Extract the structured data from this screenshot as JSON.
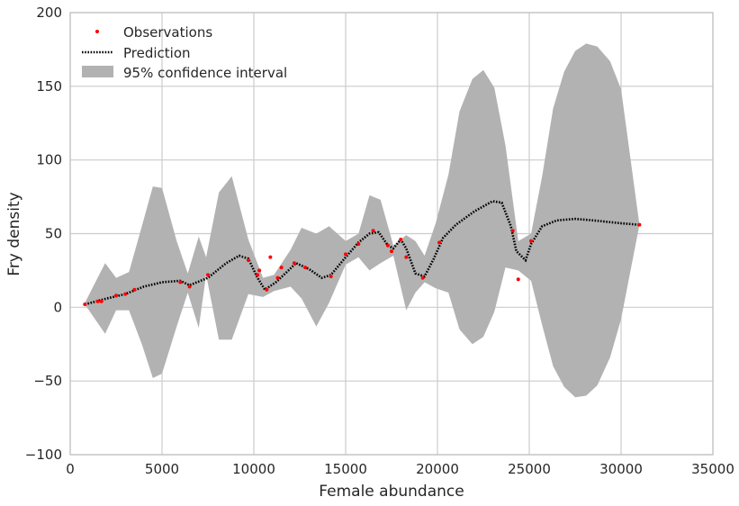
{
  "chart_data": {
    "type": "line",
    "xlabel": "Female abundance",
    "ylabel": "Fry density",
    "xlim": [
      0,
      35000
    ],
    "ylim": [
      -100,
      200
    ],
    "xticks": [
      0,
      5000,
      10000,
      15000,
      20000,
      25000,
      30000,
      35000
    ],
    "yticks": [
      -100,
      -50,
      0,
      50,
      100,
      150,
      200
    ],
    "xtick_labels": [
      "0",
      "5000",
      "10000",
      "15000",
      "20000",
      "25000",
      "30000",
      "35000"
    ],
    "ytick_labels": [
      "−100",
      "−50",
      "0",
      "50",
      "100",
      "150",
      "200"
    ],
    "grid": true,
    "legend_position": "top-left",
    "legend": [
      "Observations",
      "Prediction",
      "95% confidence interval"
    ],
    "colors": {
      "observations": "#ff0000",
      "prediction": "#000000",
      "confidence_interval": "#b2b2b2",
      "grid": "#cccccc",
      "frame": "#bfbfbf"
    },
    "series": [
      {
        "name": "Observations",
        "kind": "scatter",
        "points": [
          [
            800,
            2
          ],
          [
            1500,
            4
          ],
          [
            1700,
            4
          ],
          [
            2500,
            8
          ],
          [
            3000,
            9
          ],
          [
            3500,
            12
          ],
          [
            6000,
            17
          ],
          [
            6500,
            14
          ],
          [
            7500,
            22
          ],
          [
            9700,
            32
          ],
          [
            10200,
            22
          ],
          [
            10300,
            25
          ],
          [
            10700,
            12
          ],
          [
            10900,
            34
          ],
          [
            11300,
            20
          ],
          [
            11500,
            27
          ],
          [
            12200,
            30
          ],
          [
            12800,
            27
          ],
          [
            14200,
            21
          ],
          [
            15000,
            36
          ],
          [
            15700,
            43
          ],
          [
            16500,
            52
          ],
          [
            17300,
            42
          ],
          [
            17500,
            38
          ],
          [
            18000,
            46
          ],
          [
            18300,
            34
          ],
          [
            19200,
            20
          ],
          [
            20100,
            44
          ],
          [
            24100,
            52
          ],
          [
            24400,
            19
          ],
          [
            25100,
            45
          ],
          [
            31000,
            56
          ]
        ]
      },
      {
        "name": "Prediction",
        "kind": "line",
        "points": [
          [
            800,
            2
          ],
          [
            2000,
            6
          ],
          [
            3000,
            9
          ],
          [
            4000,
            14
          ],
          [
            5000,
            17
          ],
          [
            6000,
            18
          ],
          [
            6500,
            15
          ],
          [
            7500,
            20
          ],
          [
            8500,
            30
          ],
          [
            9200,
            35
          ],
          [
            9700,
            33
          ],
          [
            10200,
            20
          ],
          [
            10600,
            12
          ],
          [
            11200,
            17
          ],
          [
            11800,
            24
          ],
          [
            12300,
            30
          ],
          [
            13000,
            26
          ],
          [
            13700,
            20
          ],
          [
            14200,
            22
          ],
          [
            15000,
            34
          ],
          [
            15700,
            44
          ],
          [
            16300,
            50
          ],
          [
            16800,
            51
          ],
          [
            17300,
            42
          ],
          [
            17600,
            40
          ],
          [
            18000,
            46
          ],
          [
            18300,
            40
          ],
          [
            18800,
            23
          ],
          [
            19300,
            21
          ],
          [
            19800,
            33
          ],
          [
            20300,
            47
          ],
          [
            21000,
            56
          ],
          [
            22000,
            65
          ],
          [
            23000,
            72
          ],
          [
            23500,
            71
          ],
          [
            24000,
            55
          ],
          [
            24300,
            38
          ],
          [
            24800,
            32
          ],
          [
            25100,
            43
          ],
          [
            25700,
            55
          ],
          [
            26500,
            59
          ],
          [
            27500,
            60
          ],
          [
            28500,
            59
          ],
          [
            30000,
            57
          ],
          [
            31000,
            56
          ]
        ]
      },
      {
        "name": "95% confidence interval",
        "kind": "band",
        "x": [
          800,
          1900,
          2500,
          3200,
          3900,
          4500,
          5000,
          5800,
          6400,
          7000,
          7400,
          8100,
          8800,
          9700,
          10500,
          11100,
          12000,
          12600,
          13400,
          14100,
          15000,
          15700,
          16300,
          16900,
          17600,
          18300,
          18800,
          19300,
          19900,
          20600,
          21200,
          21900,
          22500,
          23100,
          23700,
          24400,
          25100,
          25700,
          26300,
          26900,
          27500,
          28100,
          28700,
          29400,
          30000,
          31000
        ],
        "upper": [
          3,
          30,
          20,
          24,
          55,
          82,
          81,
          45,
          23,
          48,
          34,
          78,
          89,
          46,
          20,
          22,
          39,
          54,
          50,
          55,
          45,
          50,
          76,
          73,
          42,
          49,
          45,
          35,
          57,
          90,
          133,
          155,
          161,
          149,
          110,
          45,
          50,
          89,
          135,
          160,
          174,
          179,
          177,
          167,
          148,
          56
        ],
        "lower": [
          2,
          -18,
          -2,
          -2,
          -25,
          -48,
          -45,
          -13,
          10,
          -14,
          22,
          -22,
          -22,
          9,
          7,
          11,
          14,
          6,
          -13,
          3,
          29,
          34,
          25,
          30,
          35,
          -2,
          10,
          17,
          13,
          10,
          -15,
          -25,
          -20,
          -3,
          27,
          25,
          18,
          -12,
          -40,
          -54,
          -61,
          -60,
          -53,
          -34,
          -8,
          56
        ]
      }
    ]
  }
}
